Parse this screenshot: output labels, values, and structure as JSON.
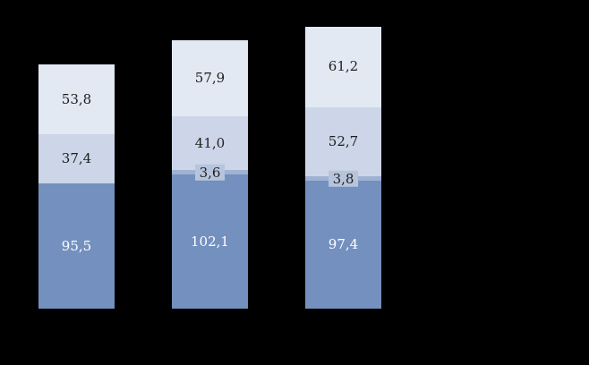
{
  "page": {
    "background": "#000000"
  },
  "chart_data": {
    "type": "bar",
    "stacked": true,
    "title": "",
    "xlabel": "",
    "ylabel": "",
    "legend": null,
    "axes_visible": false,
    "decimal_separator": "comma",
    "categories": [
      "",
      "",
      ""
    ],
    "series": [
      {
        "name": "bottom-segment",
        "color": "#7390BE",
        "label_color": "#FFFFFF",
        "values": [
          95.5,
          102.1,
          97.4
        ],
        "labels": [
          "95,5",
          "102,1",
          "97,4"
        ]
      },
      {
        "name": "thin-segment",
        "color": "#9FB2D2",
        "chip_color": "#B7C5DC",
        "label_color": "#1F1F1F",
        "values": [
          0,
          3.6,
          3.8
        ],
        "labels": [
          "",
          "3,6",
          "3,8"
        ]
      },
      {
        "name": "middle-segment",
        "color": "#CCD6E8",
        "label_color": "#1F1F1F",
        "values": [
          37.4,
          41.0,
          52.7
        ],
        "labels": [
          "37,4",
          "41,0",
          "52,7"
        ]
      },
      {
        "name": "top-segment",
        "color": "#E2E9F3",
        "label_color": "#1F1F1F",
        "values": [
          53.8,
          57.9,
          61.2
        ],
        "labels": [
          "53,8",
          "57,9",
          "61,2"
        ]
      }
    ]
  }
}
